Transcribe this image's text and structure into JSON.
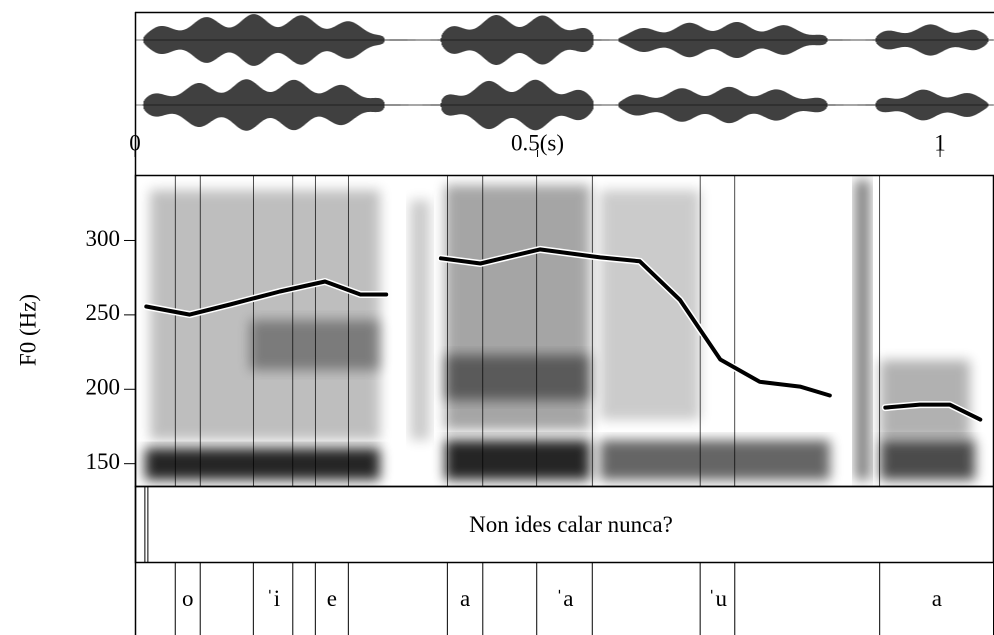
{
  "chart_data": {
    "type": "line",
    "y_label": "F0 (Hz)",
    "x": [
      0.014,
      0.068,
      0.118,
      0.18,
      0.236,
      0.28,
      0.312,
      null,
      0.38,
      0.429,
      0.503,
      0.578,
      0.627,
      0.677,
      0.727,
      0.776,
      0.826,
      0.863,
      null,
      0.932,
      0.975,
      1.012,
      1.05
    ],
    "series": [
      {
        "color": "#000000",
        "values": [
          255.6,
          250.2,
          257,
          265.7,
          272.4,
          263.7,
          263.7,
          null,
          288,
          284.5,
          294,
          288.6,
          286,
          260,
          220,
          205,
          201.8,
          195.8,
          null,
          187.7,
          189.7,
          189.7,
          179.6
        ]
      }
    ],
    "xlim": [
      0,
      1.067
    ],
    "xticks": [
      0,
      {
        "value": 0.5,
        "label": "0.5(s)"
      },
      1
    ],
    "ylim": [
      135,
      344
    ],
    "yticks": [
      150,
      200,
      250,
      300
    ],
    "text_tier": {
      "boundaries": [
        0,
        0.016,
        1.067
      ],
      "labels": [
        null,
        "Non ides calar nunca?"
      ]
    },
    "syllable_tier": {
      "boundaries": [
        0,
        0.05,
        0.081,
        0.147,
        0.196,
        0.224,
        0.265,
        0.388,
        0.432,
        0.499,
        0.568,
        0.702,
        0.745,
        0.925,
        1.067
      ],
      "labels": [
        null,
        "o",
        null,
        "ˈi",
        null,
        "e",
        null,
        "a",
        null,
        "ˈa",
        null,
        "ˈu",
        null,
        "a"
      ]
    }
  }
}
